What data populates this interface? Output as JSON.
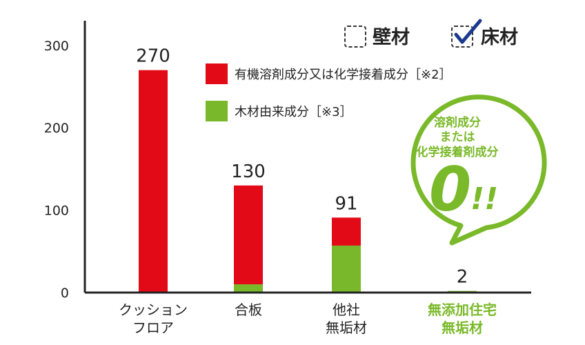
{
  "colors": {
    "solvent": "#e20a16",
    "wood": "#78b82a",
    "highlight": "#7ab929",
    "axis": "#222222"
  },
  "toggles": [
    {
      "label": "壁材",
      "checked": false
    },
    {
      "label": "床材",
      "checked": true
    }
  ],
  "legend": [
    {
      "label": "有機溶剤成分又は化学接着成分［※2］",
      "color_key": "solvent"
    },
    {
      "label": "木材由来成分［※3］",
      "color_key": "wood"
    }
  ],
  "callout": {
    "lines": [
      "溶剤成分",
      "または",
      "化学接着剤成分"
    ],
    "value": "0",
    "mark": "!!"
  },
  "chart_data": {
    "type": "bar",
    "stacked": true,
    "categories": [
      {
        "lines": [
          "クッション",
          "フロア"
        ],
        "highlight": false
      },
      {
        "lines": [
          "合板"
        ],
        "highlight": false
      },
      {
        "lines": [
          "他社",
          "無垢材"
        ],
        "highlight": false
      },
      {
        "lines": [
          "無添加住宅",
          "無垢材"
        ],
        "highlight": true
      }
    ],
    "series": [
      {
        "name": "有機溶剤成分又は化学接着成分［※2］",
        "color_key": "solvent",
        "values": [
          270,
          120,
          34,
          0
        ]
      },
      {
        "name": "木材由来成分［※3］",
        "color_key": "wood",
        "values": [
          0,
          10,
          57,
          2
        ]
      }
    ],
    "totals": [
      "270",
      "130",
      "91",
      "2"
    ],
    "yticks": [
      "0",
      "100",
      "200",
      "300"
    ],
    "ylim": [
      0,
      330
    ],
    "grid": false,
    "legend_position": "top-right"
  }
}
